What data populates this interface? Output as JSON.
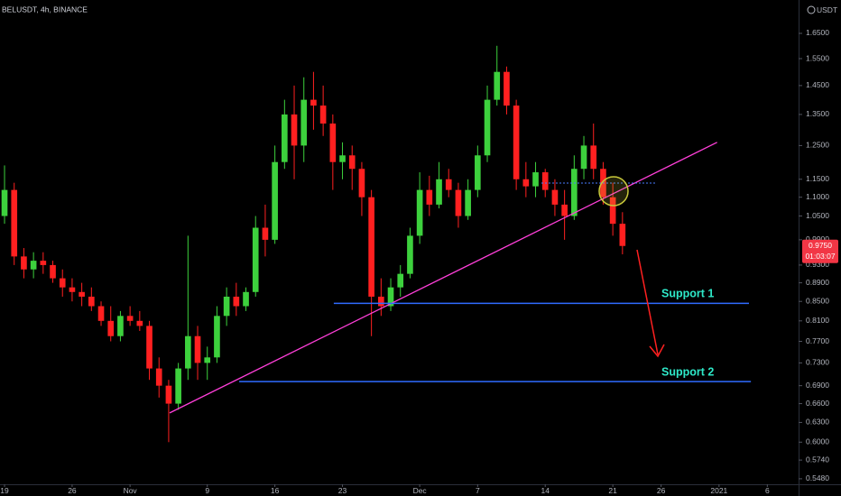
{
  "chart_data": {
    "type": "candlestick",
    "title": "BELUSDT, 4h, BINANCE",
    "currency": "USDT",
    "log_scale": true,
    "grid": false,
    "up_color": "#3dd13d",
    "down_color": "#ff2020",
    "xlim": [
      -0.47,
      82.24
    ],
    "xticks": [
      {
        "value": 0,
        "label": "19"
      },
      {
        "value": 7,
        "label": "26"
      },
      {
        "value": 13,
        "label": "Nov"
      },
      {
        "value": 21,
        "label": "9"
      },
      {
        "value": 28,
        "label": "16"
      },
      {
        "value": 35,
        "label": "23"
      },
      {
        "value": 43,
        "label": "Dec"
      },
      {
        "value": 49,
        "label": "7"
      },
      {
        "value": 56,
        "label": "14"
      },
      {
        "value": 63,
        "label": "21"
      },
      {
        "value": 68,
        "label": "26"
      },
      {
        "value": 74,
        "label": "2021"
      },
      {
        "value": 79,
        "label": "6"
      }
    ],
    "ylim": [
      0.5406,
      1.792
    ],
    "yticks": [
      {
        "value": 1.65,
        "label": "1.6500"
      },
      {
        "value": 1.55,
        "label": "1.5500"
      },
      {
        "value": 1.45,
        "label": "1.4500"
      },
      {
        "value": 1.35,
        "label": "1.3500"
      },
      {
        "value": 1.25,
        "label": "1.2500"
      },
      {
        "value": 1.15,
        "label": "1.1500"
      },
      {
        "value": 1.1,
        "label": "1.1000"
      },
      {
        "value": 1.05,
        "label": "1.0500"
      },
      {
        "value": 0.99,
        "label": "0.9900"
      },
      {
        "value": 0.93,
        "label": "0.9300"
      },
      {
        "value": 0.89,
        "label": "0.8900"
      },
      {
        "value": 0.85,
        "label": "0.8500"
      },
      {
        "value": 0.81,
        "label": "0.8100"
      },
      {
        "value": 0.77,
        "label": "0.7700"
      },
      {
        "value": 0.73,
        "label": "0.7300"
      },
      {
        "value": 0.69,
        "label": "0.6900"
      },
      {
        "value": 0.66,
        "label": "0.6600"
      },
      {
        "value": 0.63,
        "label": "0.6300"
      },
      {
        "value": 0.6,
        "label": "0.6000"
      },
      {
        "value": 0.574,
        "label": "0.5740"
      },
      {
        "value": 0.548,
        "label": "0.5480"
      }
    ],
    "x": [
      0,
      1,
      2,
      3,
      4,
      5,
      6,
      7,
      8,
      9,
      10,
      11,
      12,
      13,
      14,
      15,
      16,
      17,
      18,
      19,
      20,
      21,
      22,
      23,
      24,
      25,
      26,
      27,
      28,
      29,
      30,
      31,
      32,
      33,
      34,
      35,
      36,
      37,
      38,
      39,
      40,
      41,
      42,
      43,
      44,
      45,
      46,
      47,
      48,
      49,
      50,
      51,
      52,
      53,
      54,
      55,
      56,
      57,
      58,
      59,
      60,
      61,
      62,
      63,
      64
    ],
    "open": [
      1.05,
      1.12,
      0.95,
      0.92,
      0.94,
      0.93,
      0.9,
      0.88,
      0.87,
      0.86,
      0.84,
      0.81,
      0.78,
      0.82,
      0.81,
      0.8,
      0.72,
      0.69,
      0.66,
      0.72,
      0.78,
      0.73,
      0.74,
      0.82,
      0.86,
      0.84,
      0.87,
      1.02,
      0.99,
      1.2,
      1.35,
      1.25,
      1.4,
      1.38,
      1.32,
      1.2,
      1.22,
      1.18,
      1.1,
      0.86,
      0.84,
      0.88,
      0.91,
      1.0,
      1.12,
      1.08,
      1.15,
      1.12,
      1.05,
      1.12,
      1.22,
      1.4,
      1.5,
      1.38,
      1.15,
      1.13,
      1.17,
      1.12,
      1.08,
      1.05,
      1.18,
      1.25,
      1.18,
      1.1,
      1.03
    ],
    "high": [
      1.19,
      1.14,
      0.97,
      0.96,
      0.96,
      0.94,
      0.92,
      0.9,
      0.89,
      0.88,
      0.85,
      0.84,
      0.83,
      0.84,
      0.83,
      0.81,
      0.74,
      0.7,
      0.73,
      1.0,
      0.8,
      0.76,
      0.84,
      0.88,
      0.89,
      0.88,
      1.05,
      1.08,
      1.25,
      1.4,
      1.45,
      1.48,
      1.5,
      1.45,
      1.35,
      1.26,
      1.25,
      1.2,
      1.12,
      0.9,
      0.9,
      0.93,
      1.02,
      1.17,
      1.16,
      1.2,
      1.18,
      1.14,
      1.15,
      1.25,
      1.45,
      1.6,
      1.52,
      1.4,
      1.2,
      1.2,
      1.18,
      1.15,
      1.12,
      1.22,
      1.28,
      1.32,
      1.2,
      1.14,
      1.06
    ],
    "low": [
      1.03,
      0.93,
      0.9,
      0.9,
      0.91,
      0.89,
      0.86,
      0.85,
      0.84,
      0.83,
      0.8,
      0.77,
      0.77,
      0.8,
      0.79,
      0.7,
      0.67,
      0.6,
      0.65,
      0.7,
      0.7,
      0.7,
      0.73,
      0.8,
      0.82,
      0.83,
      0.86,
      0.95,
      0.98,
      1.18,
      1.15,
      1.2,
      1.3,
      1.28,
      1.12,
      1.15,
      1.12,
      1.05,
      0.78,
      0.82,
      0.83,
      0.86,
      0.9,
      0.98,
      1.05,
      1.07,
      1.1,
      1.02,
      1.04,
      1.1,
      1.2,
      1.38,
      1.35,
      1.12,
      1.1,
      1.1,
      1.1,
      1.05,
      0.99,
      1.04,
      1.15,
      1.15,
      1.08,
      1.0,
      0.955
    ],
    "close": [
      1.12,
      0.95,
      0.92,
      0.94,
      0.93,
      0.9,
      0.88,
      0.87,
      0.86,
      0.84,
      0.81,
      0.78,
      0.82,
      0.81,
      0.8,
      0.72,
      0.69,
      0.66,
      0.72,
      0.78,
      0.73,
      0.74,
      0.82,
      0.86,
      0.84,
      0.87,
      1.02,
      0.99,
      1.2,
      1.35,
      1.25,
      1.4,
      1.38,
      1.32,
      1.2,
      1.22,
      1.18,
      1.1,
      0.86,
      0.84,
      0.88,
      0.91,
      1.0,
      1.12,
      1.08,
      1.15,
      1.12,
      1.05,
      1.12,
      1.22,
      1.4,
      1.5,
      1.38,
      1.15,
      1.13,
      1.17,
      1.12,
      1.08,
      1.05,
      1.18,
      1.25,
      1.18,
      1.1,
      1.03,
      0.975
    ],
    "trendline": {
      "x": [
        17.1,
        73.8
      ],
      "y": [
        0.645,
        1.26
      ],
      "color": "#ff3fd9"
    },
    "levels": [
      {
        "label": "Support 1",
        "value": 0.846,
        "x": [
          34.1,
          77.1
        ],
        "color": "#2f6bff"
      },
      {
        "label": "Support 2",
        "value": 0.697,
        "x": [
          24.3,
          77.3
        ],
        "color": "#2f6bff"
      }
    ],
    "level_label_color": "#2ee8c8",
    "last_price": {
      "value": 0.975,
      "label": "0.9750"
    },
    "countdown": "01:03:07"
  }
}
